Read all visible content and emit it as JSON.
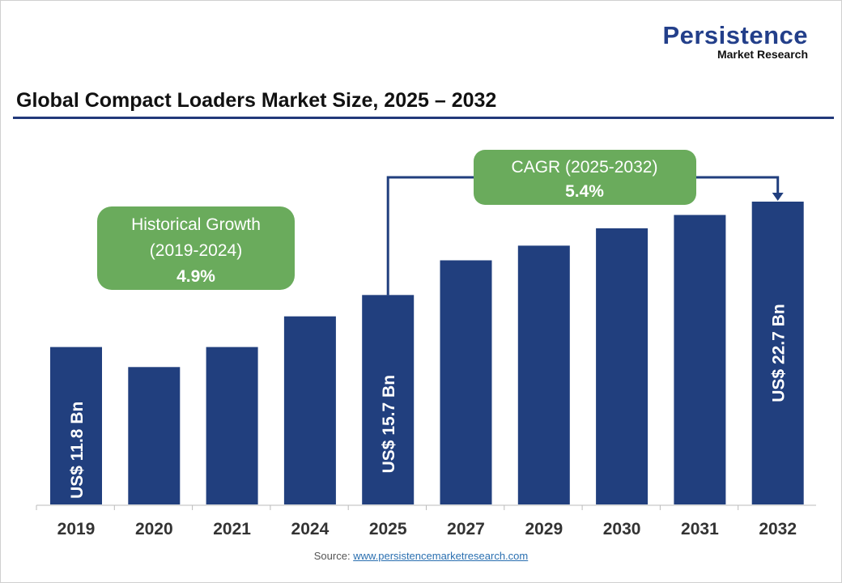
{
  "logo": {
    "brand": "Persistence",
    "sub": "Market Research"
  },
  "title": "Global Compact Loaders Market Size, 2025 – 2032",
  "source": {
    "label": "Source:",
    "link": "www.persistencemarketresearch.com"
  },
  "colors": {
    "bar": "#213f7e",
    "annotation": "#6aab5c",
    "rule": "#22397a"
  },
  "chart_data": {
    "type": "bar",
    "title": "Global Compact Loaders Market Size, 2025 – 2032",
    "categories": [
      "2019",
      "2020",
      "2021",
      "2024",
      "2025",
      "2027",
      "2029",
      "2030",
      "2031",
      "2032"
    ],
    "values": [
      11.8,
      10.3,
      11.8,
      14.1,
      15.7,
      18.3,
      19.4,
      20.7,
      21.7,
      22.7
    ],
    "data_labels": {
      "2019": "US$ 11.8 Bn",
      "2025": "US$ 15.7 Bn",
      "2032": "US$ 22.7 Bn"
    },
    "annotations": [
      {
        "line1": "Historical Growth",
        "line2": "(2019-2024)",
        "value": "4.9%"
      },
      {
        "line1": "CAGR (2025-2032)",
        "value": "5.4%"
      }
    ],
    "grid": false
  }
}
